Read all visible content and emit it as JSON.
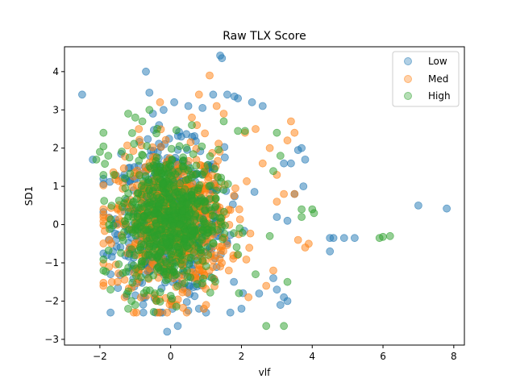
{
  "chart_data": {
    "type": "scatter",
    "title": "Raw TLX Score",
    "xlabel": "vlf",
    "ylabel": "SD1",
    "xlim": [
      -3.0,
      8.3
    ],
    "ylim": [
      -3.15,
      4.65
    ],
    "xticks": [
      -2,
      0,
      2,
      4,
      6,
      8
    ],
    "yticks": [
      -3,
      -2,
      -1,
      0,
      1,
      2,
      3,
      4
    ],
    "xtick_labels": [
      "−2",
      "0",
      "2",
      "4",
      "6",
      "8"
    ],
    "ytick_labels": [
      "−3",
      "−2",
      "−1",
      "0",
      "1",
      "2",
      "3",
      "4"
    ],
    "grid": false,
    "legend_position": "top-right",
    "point_opacity": 0.5,
    "series": [
      {
        "name": "Low",
        "color": "#1f77b4",
        "core": {
          "center": [
            0.0,
            0.1
          ],
          "spread": [
            0.75,
            0.95
          ],
          "count": 650
        },
        "points": [
          [
            -2.5,
            3.4
          ],
          [
            -0.7,
            4.0
          ],
          [
            1.4,
            4.42
          ],
          [
            1.45,
            4.35
          ],
          [
            1.6,
            3.4
          ],
          [
            1.8,
            3.35
          ],
          [
            2.3,
            3.2
          ],
          [
            2.6,
            3.1
          ],
          [
            1.2,
            3.4
          ],
          [
            -0.6,
            3.45
          ],
          [
            0.1,
            3.2
          ],
          [
            0.5,
            3.1
          ],
          [
            3.2,
            1.6
          ],
          [
            3.4,
            1.6
          ],
          [
            3.7,
            2.0
          ],
          [
            3.6,
            1.95
          ],
          [
            3.8,
            1.7
          ],
          [
            3.75,
            1.0
          ],
          [
            3.5,
            0.8
          ],
          [
            3.0,
            0.2
          ],
          [
            3.3,
            0.1
          ],
          [
            4.5,
            -0.35
          ],
          [
            4.6,
            -0.35
          ],
          [
            4.9,
            -0.35
          ],
          [
            5.2,
            -0.35
          ],
          [
            4.5,
            -0.7
          ],
          [
            7.0,
            0.5
          ],
          [
            7.8,
            0.42
          ],
          [
            3.0,
            -1.7
          ],
          [
            3.1,
            -2.1
          ],
          [
            3.2,
            -1.9
          ],
          [
            -0.1,
            -2.8
          ],
          [
            0.2,
            -2.65
          ],
          [
            0.8,
            -2.2
          ],
          [
            1.0,
            -2.3
          ],
          [
            0.5,
            -2.25
          ],
          [
            -1.7,
            -1.3
          ],
          [
            -1.75,
            -0.4
          ],
          [
            -1.8,
            -0.8
          ],
          [
            2.0,
            -2.2
          ],
          [
            2.5,
            -1.8
          ],
          [
            -2.2,
            1.7
          ],
          [
            -0.2,
            3.0
          ],
          [
            0.9,
            3.05
          ],
          [
            0.3,
            2.3
          ],
          [
            -1.4,
            1.85
          ],
          [
            2.9,
            -1.4
          ],
          [
            3.3,
            -2.0
          ],
          [
            -0.5,
            2.9
          ],
          [
            1.9,
            3.3
          ]
        ]
      },
      {
        "name": "Med",
        "color": "#ff7f0e",
        "core": {
          "center": [
            0.05,
            0.05
          ],
          "spread": [
            0.8,
            0.9
          ],
          "count": 650
        },
        "points": [
          [
            1.1,
            3.9
          ],
          [
            0.8,
            3.4
          ],
          [
            1.3,
            3.1
          ],
          [
            -0.3,
            3.2
          ],
          [
            3.4,
            2.7
          ],
          [
            3.5,
            2.4
          ],
          [
            3.3,
            2.2
          ],
          [
            3.0,
            1.3
          ],
          [
            3.2,
            0.8
          ],
          [
            3.5,
            0.8
          ],
          [
            3.8,
            -0.6
          ],
          [
            3.6,
            -0.4
          ],
          [
            3.9,
            -0.5
          ],
          [
            2.7,
            -1.6
          ],
          [
            2.9,
            -1.2
          ],
          [
            -1.9,
            -1.6
          ],
          [
            -1.5,
            -1.5
          ],
          [
            0.0,
            -2.0
          ],
          [
            1.5,
            2.9
          ],
          [
            2.4,
            2.5
          ],
          [
            2.8,
            2.0
          ],
          [
            -0.9,
            2.5
          ],
          [
            1.0,
            -2.1
          ],
          [
            2.1,
            2.4
          ],
          [
            -0.4,
            -2.0
          ],
          [
            0.6,
            2.8
          ],
          [
            2.6,
            1.6
          ],
          [
            3.0,
            0.6
          ],
          [
            2.2,
            -1.9
          ],
          [
            -1.3,
            -1.9
          ]
        ]
      },
      {
        "name": "High",
        "color": "#2ca02c",
        "core": {
          "center": [
            -0.05,
            0.15
          ],
          "spread": [
            0.7,
            0.9
          ],
          "count": 650
        },
        "points": [
          [
            -2.0,
            1.9
          ],
          [
            -2.1,
            1.7
          ],
          [
            -1.9,
            2.4
          ],
          [
            -1.2,
            2.9
          ],
          [
            -1.0,
            2.8
          ],
          [
            -0.8,
            2.7
          ],
          [
            0.6,
            2.6
          ],
          [
            1.9,
            2.45
          ],
          [
            2.1,
            2.45
          ],
          [
            3.7,
            0.4
          ],
          [
            3.7,
            0.2
          ],
          [
            4.0,
            0.4
          ],
          [
            4.05,
            0.3
          ],
          [
            5.9,
            -0.35
          ],
          [
            6.0,
            -0.32
          ],
          [
            6.2,
            -0.3
          ],
          [
            2.7,
            -2.65
          ],
          [
            3.2,
            -2.65
          ],
          [
            -1.2,
            -2.2
          ],
          [
            -1.0,
            -2.1
          ],
          [
            -1.7,
            -1.7
          ],
          [
            2.9,
            1.4
          ],
          [
            3.1,
            1.8
          ],
          [
            3.0,
            2.4
          ],
          [
            -0.6,
            3.0
          ],
          [
            3.3,
            -1.5
          ],
          [
            2.4,
            -1.3
          ],
          [
            2.8,
            -0.3
          ],
          [
            -1.6,
            1.3
          ],
          [
            1.5,
            2.7
          ]
        ]
      }
    ]
  }
}
